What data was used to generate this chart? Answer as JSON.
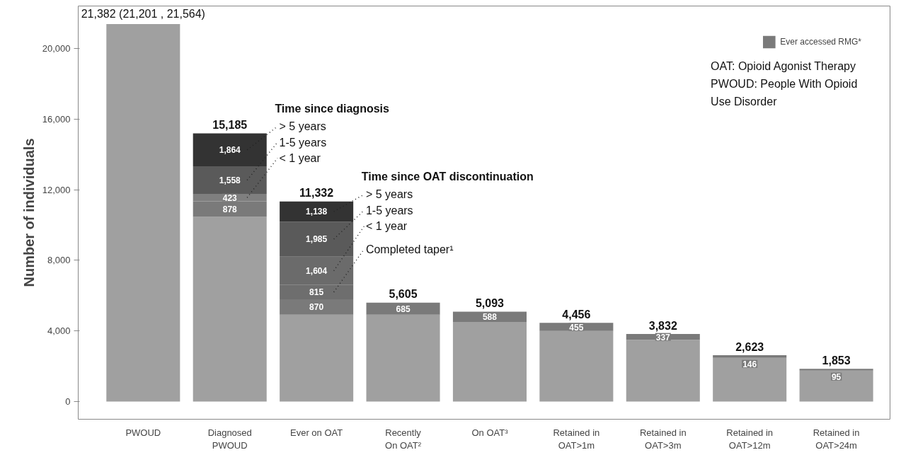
{
  "chart_data": {
    "type": "bar",
    "stacked": true,
    "ylabel": "Number of individuals",
    "categories": [
      "PWOUD",
      "Diagnosed\nPWOUD",
      "Ever on OAT",
      "Recently\nOn OAT²",
      "On OAT³",
      "Retained in\nOAT>1m",
      "Retained in\nOAT>3m",
      "Retained in\nOAT>12m",
      "Retained in\nOAT>24m"
    ],
    "series": [
      {
        "color": "#a0a0a0",
        "values": [
          21382,
          10462,
          4920,
          4920,
          4505,
          4001,
          3495,
          2477,
          1758
        ]
      },
      {
        "name": "Ever accessed RMG*",
        "color": "#7a7a7a",
        "values": [
          null,
          878,
          870,
          685,
          588,
          455,
          337,
          146,
          95
        ],
        "value_labels": [
          null,
          "878",
          "870",
          "685",
          "588",
          "455",
          "337",
          "146",
          "95"
        ]
      },
      {
        "name": "Completed taper¹",
        "color": "#6e6e6e",
        "values": [
          null,
          null,
          815,
          null,
          null,
          null,
          null,
          null,
          null
        ],
        "value_labels": [
          null,
          null,
          "815",
          null,
          null,
          null,
          null,
          null,
          null
        ]
      },
      {
        "name": "< 1 year",
        "colors": [
          null,
          "#7f7f7f",
          "#6b6b6b",
          null,
          null,
          null,
          null,
          null,
          null
        ],
        "values": [
          null,
          423,
          1604,
          null,
          null,
          null,
          null,
          null,
          null
        ],
        "value_labels": [
          null,
          "423",
          "1,604",
          null,
          null,
          null,
          null,
          null,
          null
        ]
      },
      {
        "name": "1-5 years",
        "color": "#5a5a5a",
        "values": [
          null,
          1558,
          1985,
          null,
          null,
          null,
          null,
          null,
          null
        ],
        "value_labels": [
          null,
          "1,558",
          "1,985",
          null,
          null,
          null,
          null,
          null,
          null
        ]
      },
      {
        "name": "> 5 years",
        "color": "#333333",
        "values": [
          null,
          1864,
          1138,
          null,
          null,
          null,
          null,
          null,
          null
        ],
        "value_labels": [
          null,
          "1,864",
          "1,138",
          null,
          null,
          null,
          null,
          null,
          null
        ]
      }
    ],
    "totals": [
      "21,382 (21,201 , 21,564)",
      "15,185",
      "11,332",
      "5,605",
      "5,093",
      "4,456",
      "3,832",
      "2,623",
      "1,853"
    ],
    "ylim": [
      -1000,
      22400
    ],
    "yticks": [
      0,
      {
        "value": 4000,
        "label": "4,000"
      },
      {
        "value": 8000,
        "label": "8,000"
      },
      {
        "value": 12000,
        "label": "12,000"
      },
      {
        "value": 16000,
        "label": "16,000"
      },
      {
        "value": 20000,
        "label": "20,000"
      }
    ],
    "grid": false,
    "legend": "top right",
    "annotations": [
      "Time since diagnosis",
      "Time since OAT discontinuation",
      "OAT: Opioid Agonist Therapy",
      "PWOUD: People With Opioid Use Disorder"
    ]
  }
}
